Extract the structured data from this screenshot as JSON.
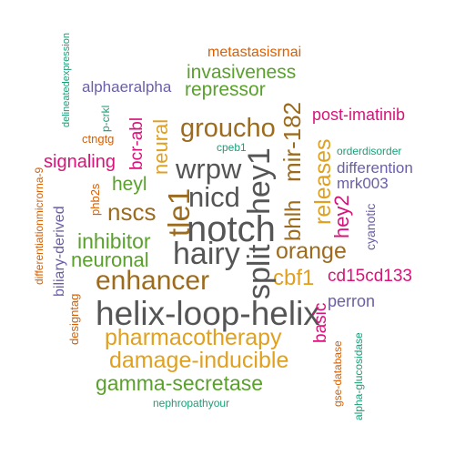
{
  "words": {
    "notch": "notch",
    "helix_loop_helix": "helix-loop-helix",
    "hairy": "hairy",
    "enhancer": "enhancer",
    "split": "split",
    "hey1": "hey1",
    "wrpw": "wrpw",
    "nicd": "nicd",
    "tle1": "tle1",
    "groucho": "groucho",
    "pharmacotherapy": "pharmacotherapy",
    "damage_inducible": "damage-inducible",
    "gamma_secretase": "gamma-secretase",
    "orange": "orange",
    "nscs": "nscs",
    "mir_182": "mir-182",
    "bhlh": "bhlh",
    "releases": "releases",
    "cbf1": "cbf1",
    "inhibitor": "inhibitor",
    "neuronal": "neuronal",
    "heyl": "heyl",
    "neural": "neural",
    "signaling": "signaling",
    "invasiveness": "invasiveness",
    "repressor": "repressor",
    "hey2": "hey2",
    "bcr_abl": "bcr-abl",
    "post_imatinib": "post-imatinib",
    "cd15cd133": "cd15cd133",
    "basic": "basic",
    "perron": "perron",
    "alphaeralpha": "alphaeralpha",
    "difference": "differention",
    "mrk003": "mrk003",
    "metastasisrnai": "metastasisrnai",
    "biliary_derived": "biliary-derived",
    "cyanotic": "cyanotic",
    "designtag": "designtag",
    "phb2s": "phb2s",
    "ctngtg": "ctngtg",
    "p_crkl": "p-crkl",
    "cpeb1": "cpeb1",
    "orderdisorder": "orderdisorder",
    "differentiationmicrorna_9": "differentiationmicrorna-9",
    "delineatedexpression": "delineatedexpression",
    "nephropathyour": "nephropathyour",
    "gse_database": "gse-database",
    "alpha_glucosidase": "alpha-glucosidase"
  },
  "palette": {
    "grey": "#555555",
    "brown": "#9c6b1e",
    "gold": "#e0a020",
    "green": "#5aa02c",
    "purple": "#6a5fa8",
    "pink": "#d8137a",
    "orange": "#d95f02",
    "teal": "#1b9e77"
  }
}
